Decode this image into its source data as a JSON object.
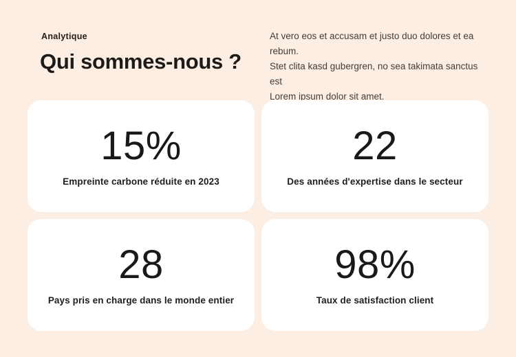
{
  "page": {
    "eyebrow": "Analytique",
    "title": "Qui sommes-nous ?"
  },
  "description_lines": {
    "0": "At vero eos et accusam et justo duo dolores et ea rebum.",
    "1": "Stet clita kasd gubergren, no sea takimata sanctus est",
    "2": "Lorem ipsum dolor sit amet."
  },
  "stats": [
    {
      "value": "15%",
      "label": "Empreinte carbone réduite en 2023"
    },
    {
      "value": "22",
      "label": "Des années d'expertise dans le secteur"
    },
    {
      "value": "28",
      "label": "Pays pris en charge dans le monde entier"
    },
    {
      "value": "98%",
      "label": "Taux de satisfaction client"
    }
  ],
  "colors": {
    "background": "#FCEEE3",
    "card": "#FFFFFF",
    "heading": "#1D1B18",
    "body_text": "#423E39"
  }
}
